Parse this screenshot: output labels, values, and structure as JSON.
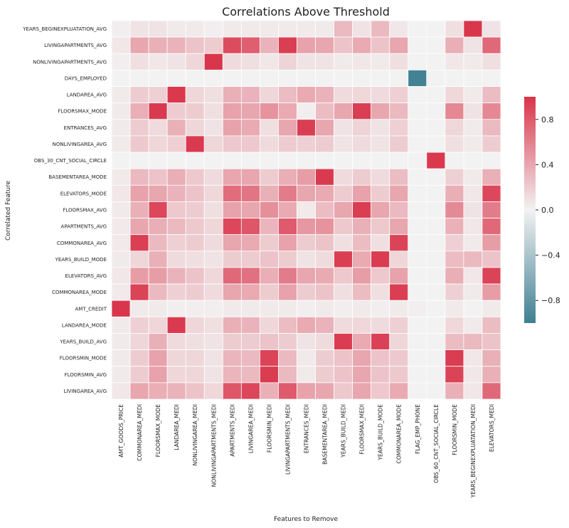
{
  "chart_data": {
    "type": "heatmap",
    "title": "Correlations Above Threshold",
    "xlabel": "Features to Remove",
    "ylabel": "Correlated Feature",
    "columns": [
      "AMT_GOODS_PRICE",
      "COMMONAREA_MEDI",
      "FLOORSMAX_MODE",
      "LANDAREA_MEDI",
      "NONLIVINGAREA_MEDI",
      "NONLIVINGAPARTMENTS_MEDI",
      "APARTMENTS_MEDI",
      "LIVINGAREA_MEDI",
      "FLOORSMIN_MEDI",
      "LIVINGAPARTMENTS_MEDI",
      "ENTRANCES_MEDI",
      "BASEMENTAREA_MEDI",
      "YEARS_BUILD_MEDI",
      "FLOORSMAX_MEDI",
      "YEARS_BUILD_MODE",
      "COMMONAREA_MODE",
      "FLAG_EMP_PHONE",
      "OBS_60_CNT_SOCIAL_CIRCLE",
      "FLOORSMIN_MODE",
      "YEARS_BEGINEXPLUATATION_MEDI",
      "ELEVATORS_MEDI"
    ],
    "rows": [
      "YEARS_BEGINEXPLUATATION_AVG",
      "LIVINGAPARTMENTS_AVG",
      "NONLIVINGAPARTMENTS_AVG",
      "DAYS_EMPLOYED",
      "LANDAREA_AVG",
      "FLOORSMAX_MODE",
      "ENTRANCES_AVG",
      "NONLIVINGAREA_AVG",
      "OBS_30_CNT_SOCIAL_CIRCLE",
      "BASEMENTAREA_MODE",
      "ELEVATORS_MODE",
      "FLOORSMAX_AVG",
      "APARTMENTS_AVG",
      "COMMONAREA_AVG",
      "YEARS_BUILD_MODE",
      "ELEVATORS_AVG",
      "COMMONAREA_MODE",
      "AMT_CREDIT",
      "LANDAREA_MODE",
      "YEARS_BUILD_AVG",
      "FLOORSMIN_MODE",
      "FLOORSMIN_AVG",
      "LIVINGAREA_AVG"
    ],
    "values": [
      [
        0.02,
        0.08,
        0.08,
        0.04,
        0.04,
        0.02,
        0.04,
        0.04,
        0.04,
        0.04,
        0.04,
        0.04,
        0.3,
        0.08,
        0.3,
        0.06,
        0,
        0,
        0.1,
        0.99,
        0.08
      ],
      [
        0.06,
        0.4,
        0.35,
        0.33,
        0.25,
        0.2,
        0.88,
        0.78,
        0.33,
        0.95,
        0.42,
        0.4,
        0.25,
        0.38,
        0.25,
        0.4,
        0,
        0,
        0.36,
        0.08,
        0.72
      ],
      [
        0.02,
        0.1,
        0.06,
        0.08,
        0.15,
        0.99,
        0.12,
        0.1,
        0.06,
        0.16,
        0.08,
        0.08,
        0.04,
        0.06,
        0.04,
        0.1,
        0,
        0,
        0.06,
        0.04,
        0.1
      ],
      [
        0,
        0,
        0,
        0,
        0,
        0,
        0,
        0,
        0,
        0,
        0,
        0,
        0,
        0,
        0,
        0,
        -0.98,
        0,
        0,
        0,
        0
      ],
      [
        0.04,
        0.2,
        0.18,
        0.98,
        0.15,
        0.1,
        0.35,
        0.33,
        0.15,
        0.28,
        0.38,
        0.33,
        0.12,
        0.14,
        0.12,
        0.18,
        0,
        0,
        0.14,
        0.04,
        0.28
      ],
      [
        0.04,
        0.36,
        0.97,
        0.2,
        0.2,
        0.1,
        0.42,
        0.4,
        0.5,
        0.38,
        0.02,
        0.28,
        0.4,
        0.95,
        0.4,
        0.3,
        0,
        0,
        0.56,
        0.08,
        0.56
      ],
      [
        0.04,
        0.2,
        0.12,
        0.35,
        0.15,
        0.08,
        0.42,
        0.38,
        0.1,
        0.4,
        0.95,
        0.4,
        0.08,
        0.16,
        0.08,
        0.18,
        0,
        0,
        0.15,
        0.04,
        0.3
      ],
      [
        0.04,
        0.22,
        0.15,
        0.18,
        0.97,
        0.15,
        0.22,
        0.22,
        0.12,
        0.2,
        0.18,
        0.2,
        0.08,
        0.12,
        0.08,
        0.2,
        0,
        0,
        0.1,
        0.04,
        0.2
      ],
      [
        0,
        0,
        0,
        0,
        0,
        0,
        0,
        0,
        0,
        0,
        0,
        0,
        0,
        0,
        0,
        0,
        0,
        0.98,
        0,
        0,
        0
      ],
      [
        0.05,
        0.3,
        0.25,
        0.36,
        0.22,
        0.12,
        0.4,
        0.4,
        0.2,
        0.36,
        0.45,
        0.97,
        0.12,
        0.2,
        0.12,
        0.28,
        0,
        0,
        0.18,
        0.04,
        0.35
      ],
      [
        0.06,
        0.42,
        0.4,
        0.33,
        0.25,
        0.14,
        0.7,
        0.66,
        0.35,
        0.62,
        0.4,
        0.38,
        0.2,
        0.42,
        0.2,
        0.4,
        0,
        0,
        0.36,
        0.06,
        0.9
      ],
      [
        0.04,
        0.35,
        0.9,
        0.22,
        0.2,
        0.1,
        0.42,
        0.4,
        0.52,
        0.38,
        0.05,
        0.28,
        0.4,
        0.95,
        0.4,
        0.3,
        0,
        0,
        0.55,
        0.08,
        0.62
      ],
      [
        0.05,
        0.4,
        0.36,
        0.3,
        0.22,
        0.15,
        0.9,
        0.82,
        0.32,
        0.8,
        0.48,
        0.5,
        0.22,
        0.35,
        0.22,
        0.4,
        0,
        0,
        0.34,
        0.06,
        0.72
      ],
      [
        0.05,
        0.94,
        0.3,
        0.18,
        0.2,
        0.12,
        0.4,
        0.38,
        0.2,
        0.42,
        0.2,
        0.25,
        0.1,
        0.28,
        0.1,
        0.92,
        0,
        0,
        0.18,
        0.04,
        0.45
      ],
      [
        0.04,
        0.15,
        0.35,
        0.12,
        0.1,
        0.08,
        0.2,
        0.2,
        0.25,
        0.2,
        0.08,
        0.12,
        0.95,
        0.38,
        0.96,
        0.15,
        0,
        0,
        0.28,
        0.3,
        0.25
      ],
      [
        0.06,
        0.45,
        0.45,
        0.33,
        0.25,
        0.14,
        0.72,
        0.68,
        0.36,
        0.62,
        0.4,
        0.38,
        0.22,
        0.45,
        0.22,
        0.42,
        0,
        0,
        0.36,
        0.06,
        0.92
      ],
      [
        0.05,
        0.92,
        0.3,
        0.18,
        0.2,
        0.12,
        0.4,
        0.38,
        0.2,
        0.42,
        0.2,
        0.25,
        0.1,
        0.28,
        0.1,
        0.95,
        0,
        0,
        0.18,
        0.04,
        0.45
      ],
      [
        0.99,
        0.04,
        0.04,
        0.02,
        0.02,
        0.02,
        0.04,
        0.04,
        0.04,
        0.04,
        0.02,
        0.04,
        0.02,
        0.04,
        0.02,
        0.04,
        0.02,
        0,
        0.04,
        0,
        0.04
      ],
      [
        0.04,
        0.18,
        0.15,
        0.97,
        0.15,
        0.1,
        0.35,
        0.33,
        0.15,
        0.28,
        0.38,
        0.33,
        0.12,
        0.14,
        0.12,
        0.18,
        0,
        0,
        0.14,
        0.04,
        0.28
      ],
      [
        0.04,
        0.15,
        0.35,
        0.12,
        0.1,
        0.08,
        0.2,
        0.2,
        0.25,
        0.2,
        0.08,
        0.12,
        0.96,
        0.38,
        0.93,
        0.15,
        0,
        0,
        0.28,
        0.3,
        0.25
      ],
      [
        0.04,
        0.2,
        0.42,
        0.15,
        0.15,
        0.08,
        0.32,
        0.3,
        0.92,
        0.3,
        0.04,
        0.2,
        0.25,
        0.4,
        0.25,
        0.22,
        0,
        0,
        0.96,
        0.06,
        0.35
      ],
      [
        0.04,
        0.2,
        0.42,
        0.15,
        0.15,
        0.08,
        0.32,
        0.3,
        0.96,
        0.3,
        0.04,
        0.2,
        0.25,
        0.4,
        0.25,
        0.22,
        0,
        0,
        0.92,
        0.06,
        0.35
      ],
      [
        0.06,
        0.4,
        0.36,
        0.33,
        0.25,
        0.14,
        0.82,
        0.9,
        0.35,
        0.8,
        0.42,
        0.4,
        0.22,
        0.4,
        0.22,
        0.38,
        0,
        0,
        0.35,
        0.06,
        0.72
      ]
    ],
    "vmin": -1,
    "vmax": 1,
    "colorbar_ticks": [
      0.8,
      0.4,
      0.0,
      -0.4,
      -0.8
    ],
    "colorbar_labels": [
      "0.8",
      "0.4",
      "0.0",
      "−0.4",
      "−0.8"
    ],
    "colors": {
      "negative": "#3f7f93",
      "neutral": "#f2f2f2",
      "positive": "#d9344a"
    }
  }
}
